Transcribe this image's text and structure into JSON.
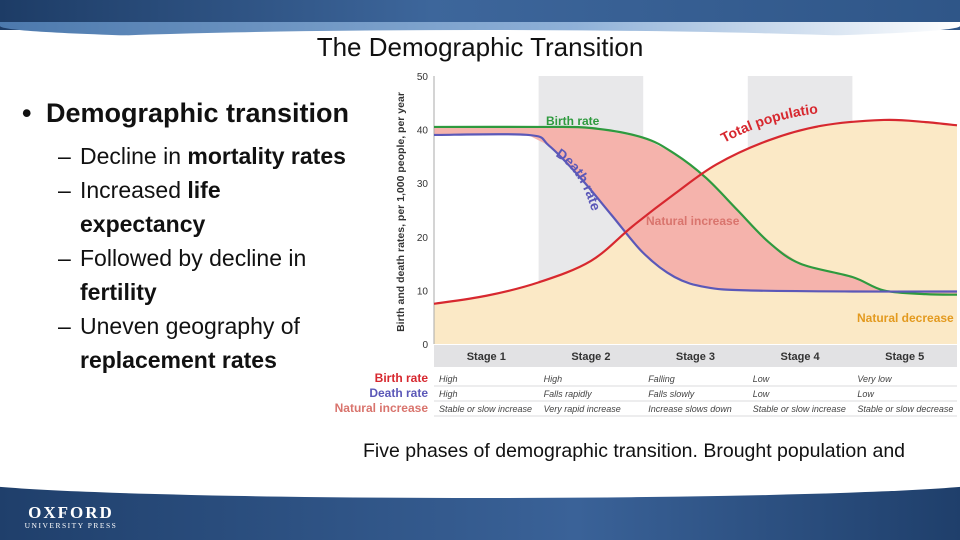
{
  "slide": {
    "title": "The Demographic Transition",
    "bullet": "Demographic transition",
    "sub_bullets": [
      {
        "plain": "Decline in ",
        "bold": "mortality rates"
      },
      {
        "plain": "Increased ",
        "bold": "life expectancy"
      },
      {
        "plain": "Followed by decline in ",
        "bold": "fertility"
      },
      {
        "plain": "Uneven geography of ",
        "bold": "replacement rates"
      }
    ],
    "caption": "Five phases of demographic transition. Brought population and cultural changes."
  },
  "footer": {
    "logo_main": "OXFORD",
    "logo_sub": "UNIVERSITY PRESS"
  },
  "colors": {
    "birth_rate": "#2e9a3e",
    "death_rate": "#5b58b8",
    "total_population": "#d7282f",
    "natural_increase": "#d9746d",
    "natural_increase_fill": "#f5b3ac",
    "natural_decrease": "#e39a1f",
    "natural_decrease_fill": "#fbe9c6",
    "stage_band": "#e8e8ea"
  },
  "diagram": {
    "y_axis_label": "Birth and death rates, per 1,000 people, per year",
    "y_ticks": [
      0,
      10,
      20,
      30,
      40,
      50
    ],
    "y_max": 50,
    "curve_labels": {
      "birth_rate": "Birth rate",
      "death_rate": "Death rate",
      "total_population": "Total population",
      "natural_increase": "Natural increase",
      "natural_decrease": "Natural decrease"
    },
    "stages": [
      "Stage 1",
      "Stage 2",
      "Stage 3",
      "Stage 4",
      "Stage 5"
    ],
    "stage_range": [
      0,
      5
    ],
    "series": {
      "birth_rate": [
        [
          0,
          40.5
        ],
        [
          1,
          40.5
        ],
        [
          1.5,
          40.3
        ],
        [
          2,
          38.5
        ],
        [
          2.3,
          35.5
        ],
        [
          2.6,
          31
        ],
        [
          2.9,
          25
        ],
        [
          3.2,
          19
        ],
        [
          3.5,
          15
        ],
        [
          4,
          12.5
        ],
        [
          4.3,
          10
        ],
        [
          4.7,
          9.3
        ],
        [
          5,
          9.2
        ]
      ],
      "death_rate": [
        [
          0,
          39
        ],
        [
          0.9,
          39
        ],
        [
          1.1,
          37
        ],
        [
          1.4,
          31
        ],
        [
          1.7,
          24
        ],
        [
          2.0,
          17
        ],
        [
          2.3,
          12.5
        ],
        [
          2.6,
          10.6
        ],
        [
          3,
          10
        ],
        [
          4,
          9.8
        ],
        [
          5,
          9.8
        ]
      ],
      "total_population": [
        [
          0,
          7.5
        ],
        [
          0.5,
          9
        ],
        [
          1,
          11.5
        ],
        [
          1.5,
          15.5
        ],
        [
          1.9,
          22
        ],
        [
          2.3,
          28
        ],
        [
          2.7,
          33.5
        ],
        [
          3.2,
          38
        ],
        [
          3.7,
          40.7
        ],
        [
          4.3,
          41.8
        ],
        [
          4.7,
          41.4
        ],
        [
          5,
          40.8
        ]
      ]
    },
    "table": {
      "row_labels": [
        "Birth rate",
        "Death rate",
        "Natural increase"
      ],
      "rows": [
        [
          "High",
          "High",
          "Falling",
          "Low",
          "Very low"
        ],
        [
          "High",
          "Falls rapidly",
          "Falls slowly",
          "Low",
          "Low"
        ],
        [
          "Stable or slow increase",
          "Very rapid increase",
          "Increase slows down",
          "Stable or slow increase",
          "Stable or slow decrease"
        ]
      ]
    }
  }
}
